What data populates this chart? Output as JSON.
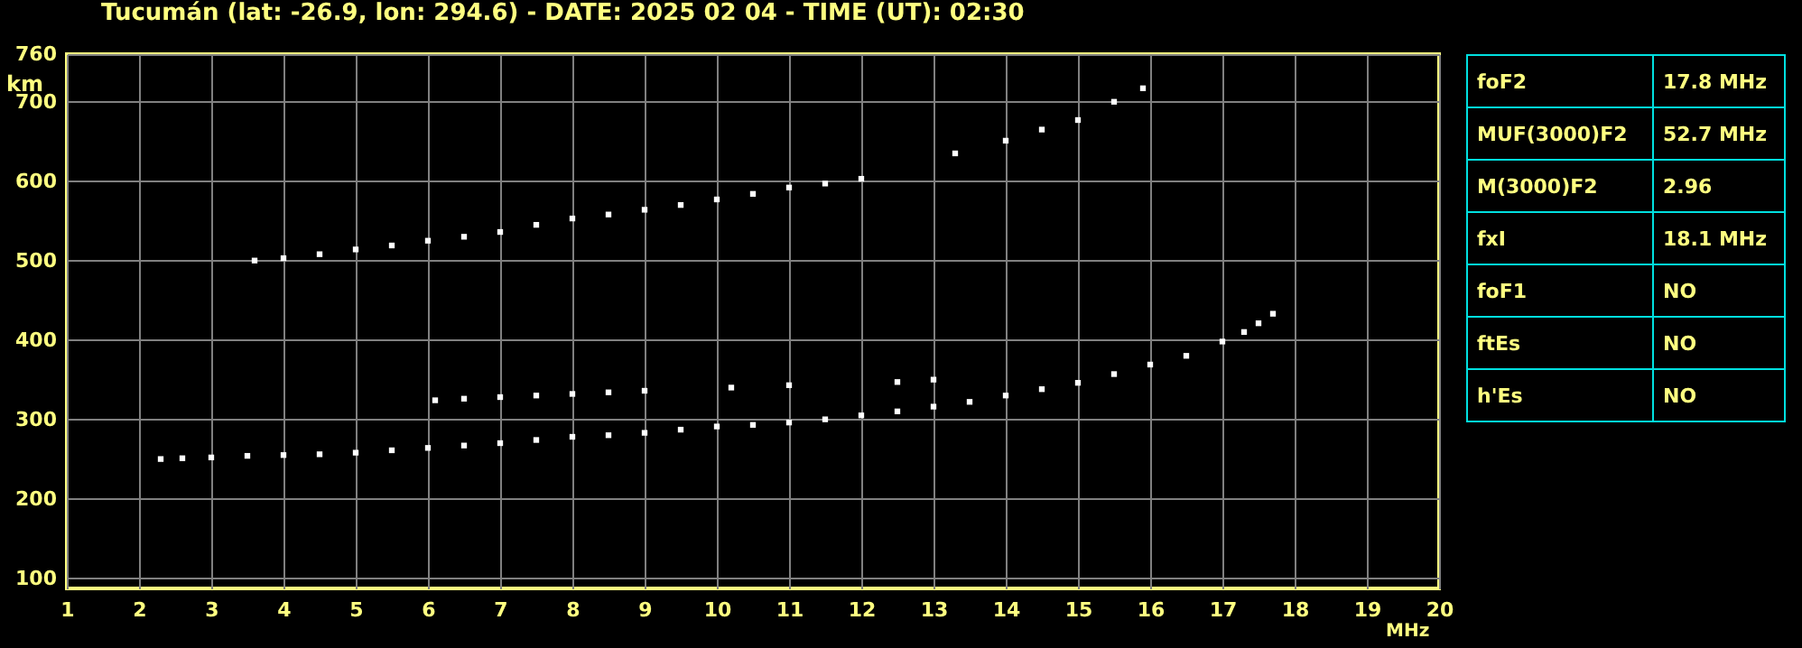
{
  "chart_data": [
    {
      "type": "scatter",
      "title": "Tucumán (lat: -26.9, lon: 294.6) - DATE: 2025 02 04 - TIME (UT): 02:30",
      "xlabel": "MHz",
      "ylabel": "km",
      "xlim": [
        1,
        20
      ],
      "xticks": [
        1,
        2,
        3,
        4,
        5,
        6,
        7,
        8,
        9,
        10,
        11,
        12,
        13,
        14,
        15,
        16,
        17,
        18,
        19,
        20
      ],
      "ylim": [
        87,
        760
      ],
      "yticks": [
        100,
        200,
        300,
        400,
        500,
        600,
        700,
        760
      ],
      "grid": true,
      "marker": "square",
      "series": [
        {
          "color": "#ffffff",
          "x": [
            2.3,
            2.6,
            3,
            3.5,
            4,
            4.5,
            5,
            5.5,
            6,
            6.5,
            7,
            7.5,
            8,
            8.5,
            9,
            9.5,
            10,
            10.5,
            11,
            11.5,
            12,
            12.5,
            13,
            13.5,
            14,
            14.5,
            15,
            15.5,
            16,
            16.5,
            17,
            17.3,
            17.5,
            17.7
          ],
          "values": [
            250,
            251,
            252,
            254,
            255,
            256,
            258,
            261,
            264,
            267,
            270,
            274,
            278,
            280,
            283,
            287,
            291,
            293,
            296,
            300,
            305,
            310,
            316,
            322,
            330,
            338,
            346,
            357,
            369,
            380,
            398,
            410,
            421,
            433
          ]
        },
        {
          "color": "#ffffff",
          "x": [
            3.6,
            4,
            4.5,
            5,
            5.5,
            6,
            6.5,
            7,
            7.5,
            8,
            8.5,
            9,
            9.5,
            10,
            10.5,
            11,
            11.5,
            12,
            13.3,
            14,
            14.5,
            15,
            15.5,
            15.9
          ],
          "values": [
            500,
            503,
            508,
            514,
            519,
            525,
            530,
            536,
            545,
            553,
            558,
            564,
            570,
            577,
            584,
            592,
            597,
            603,
            635,
            651,
            665,
            677,
            700,
            717
          ]
        },
        {
          "color": "#ffffff",
          "x": [
            6.1,
            6.5,
            7,
            7.5,
            8,
            8.5,
            9,
            10.2,
            11,
            12.5,
            13
          ],
          "values": [
            324,
            326,
            328,
            330,
            332,
            334,
            336,
            340,
            343,
            347,
            350
          ]
        }
      ]
    },
    {
      "type": "other",
      "annotations": [
        "foF2",
        "17.8 MHz",
        "MUF(3000)F2",
        "52.7 MHz",
        "M(3000)F2",
        "2.96",
        "fxI",
        "18.1 MHz",
        "foF1",
        "NO",
        "ftEs",
        "NO",
        "h'Es",
        "NO"
      ]
    }
  ]
}
